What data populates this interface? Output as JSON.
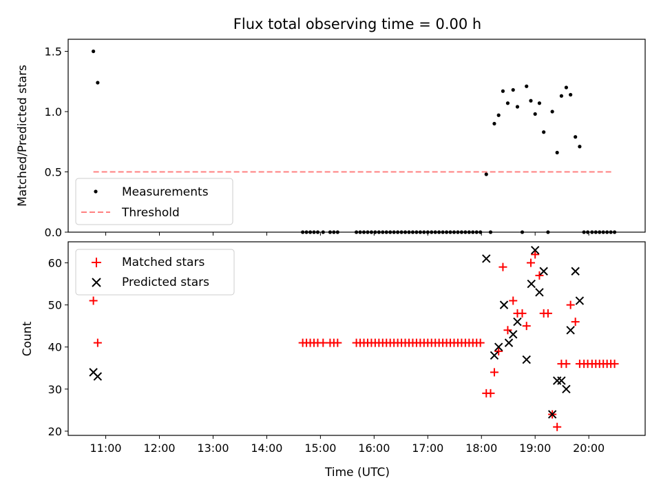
{
  "chart_data": {
    "type": "scatter",
    "title": "Flux total observing time = 0.00 h",
    "xlabel": "Time (UTC)",
    "x_unit": "hour (UTC)",
    "xlim": [
      10.3,
      21.05
    ],
    "xticks": [
      11,
      12,
      13,
      14,
      15,
      16,
      17,
      18,
      19,
      20
    ],
    "xtick_labels": [
      "11:00",
      "12:00",
      "13:00",
      "14:00",
      "15:00",
      "16:00",
      "17:00",
      "18:00",
      "19:00",
      "20:00"
    ],
    "panels": [
      {
        "ylabel": "Matched/Predicted stars",
        "ylim": [
          0,
          1.6
        ],
        "yticks": [
          0.0,
          0.5,
          1.0,
          1.5
        ],
        "ytick_labels": [
          "0.0",
          "0.5",
          "1.0",
          "1.5"
        ],
        "legend_placement": "lower-left",
        "series": [
          {
            "name": "Measurements",
            "marker": "dot",
            "color": "#000000",
            "x": [
              10.77,
              10.85,
              14.67,
              14.74,
              14.81,
              14.88,
              14.95,
              15.05,
              15.18,
              15.25,
              15.32,
              15.67,
              15.74,
              15.81,
              15.88,
              15.95,
              16.02,
              16.09,
              16.16,
              16.23,
              16.3,
              16.37,
              16.44,
              16.51,
              16.58,
              16.65,
              16.72,
              16.79,
              16.86,
              16.93,
              17.0,
              17.07,
              17.14,
              17.21,
              17.28,
              17.35,
              17.42,
              17.49,
              17.56,
              17.63,
              17.7,
              17.77,
              17.84,
              17.91,
              17.98,
              18.09,
              18.17,
              18.24,
              18.32,
              18.4,
              18.49,
              18.59,
              18.67,
              18.76,
              18.84,
              18.92,
              19.0,
              19.08,
              19.16,
              19.24,
              19.32,
              19.41,
              19.49,
              19.58,
              19.66,
              19.75,
              19.83,
              19.91,
              19.98,
              20.06,
              20.13,
              20.2,
              20.27,
              20.34,
              20.41,
              20.48
            ],
            "y": [
              1.5,
              1.24,
              0,
              0,
              0,
              0,
              0,
              0,
              0,
              0,
              0,
              0,
              0,
              0,
              0,
              0,
              0,
              0,
              0,
              0,
              0,
              0,
              0,
              0,
              0,
              0,
              0,
              0,
              0,
              0,
              0,
              0,
              0,
              0,
              0,
              0,
              0,
              0,
              0,
              0,
              0,
              0,
              0,
              0,
              0,
              0.48,
              0,
              0.9,
              0.97,
              1.17,
              1.07,
              1.18,
              1.04,
              0,
              1.21,
              1.09,
              0.98,
              1.07,
              0.83,
              0,
              1.0,
              0.66,
              1.13,
              1.2,
              1.14,
              0.79,
              0.71,
              0,
              0,
              0,
              0,
              0,
              0,
              0,
              0,
              0
            ]
          },
          {
            "name": "Threshold",
            "style": "dashed-line",
            "color": "#ff8080",
            "x": [
              10.77,
              20.45
            ],
            "y": [
              0.5,
              0.5
            ]
          }
        ]
      },
      {
        "ylabel": "Count",
        "ylim": [
          19,
          65
        ],
        "yticks": [
          20,
          30,
          40,
          50,
          60
        ],
        "ytick_labels": [
          "20",
          "30",
          "40",
          "50",
          "60"
        ],
        "legend_placement": "upper-left",
        "series": [
          {
            "name": "Matched stars",
            "marker": "plus",
            "color": "#ff0000",
            "x": [
              10.77,
              10.85,
              14.67,
              14.74,
              14.81,
              14.88,
              14.95,
              15.05,
              15.18,
              15.25,
              15.32,
              15.67,
              15.74,
              15.81,
              15.88,
              15.95,
              16.02,
              16.09,
              16.16,
              16.23,
              16.3,
              16.37,
              16.44,
              16.51,
              16.58,
              16.65,
              16.72,
              16.79,
              16.86,
              16.93,
              17.0,
              17.07,
              17.14,
              17.21,
              17.28,
              17.35,
              17.42,
              17.49,
              17.56,
              17.63,
              17.7,
              17.77,
              17.84,
              17.91,
              17.98,
              18.09,
              18.17,
              18.24,
              18.32,
              18.4,
              18.49,
              18.59,
              18.67,
              18.76,
              18.84,
              18.92,
              19.0,
              19.08,
              19.16,
              19.24,
              19.32,
              19.41,
              19.49,
              19.58,
              19.66,
              19.75,
              19.83,
              19.91,
              19.98,
              20.06,
              20.13,
              20.2,
              20.27,
              20.34,
              20.41,
              20.48
            ],
            "y": [
              51,
              41,
              41,
              41,
              41,
              41,
              41,
              41,
              41,
              41,
              41,
              41,
              41,
              41,
              41,
              41,
              41,
              41,
              41,
              41,
              41,
              41,
              41,
              41,
              41,
              41,
              41,
              41,
              41,
              41,
              41,
              41,
              41,
              41,
              41,
              41,
              41,
              41,
              41,
              41,
              41,
              41,
              41,
              41,
              41,
              29,
              29,
              34,
              39,
              59,
              44,
              51,
              48,
              48,
              45,
              60,
              62,
              57,
              48,
              48,
              24,
              21,
              36,
              36,
              50,
              46,
              36,
              36,
              36,
              36,
              36,
              36,
              36,
              36,
              36,
              36
            ]
          },
          {
            "name": "Predicted stars",
            "marker": "x",
            "color": "#000000",
            "x": [
              10.77,
              10.85,
              18.09,
              18.24,
              18.32,
              18.42,
              18.51,
              18.59,
              18.67,
              18.84,
              18.93,
              19.0,
              19.08,
              19.16,
              19.32,
              19.41,
              19.49,
              19.58,
              19.66,
              19.75,
              19.83
            ],
            "y": [
              34,
              33,
              61,
              38,
              40,
              50,
              41,
              43,
              46,
              37,
              55,
              63,
              53,
              58,
              24,
              32,
              32,
              30,
              44,
              58,
              51
            ]
          }
        ]
      }
    ]
  }
}
